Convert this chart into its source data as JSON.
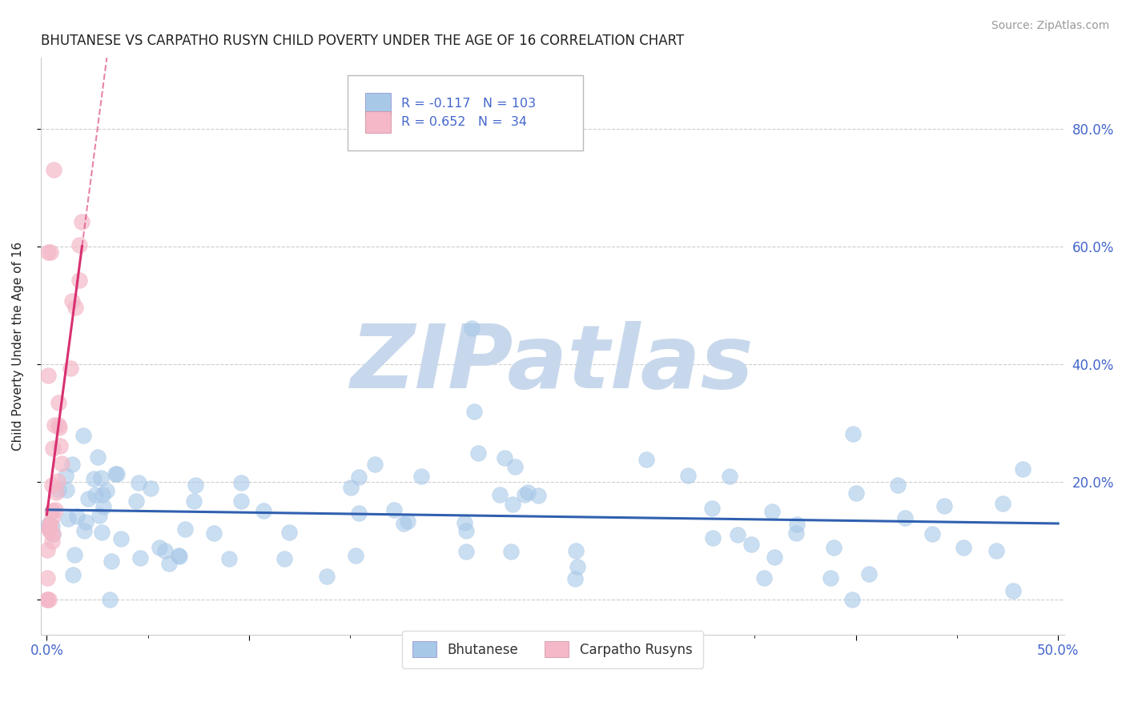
{
  "title": "BHUTANESE VS CARPATHO RUSYN CHILD POVERTY UNDER THE AGE OF 16 CORRELATION CHART",
  "source": "Source: ZipAtlas.com",
  "ylabel": "Child Poverty Under the Age of 16",
  "xlim": [
    -0.003,
    0.503
  ],
  "ylim": [
    -0.06,
    0.92
  ],
  "xtick_vals": [
    0.0,
    0.1,
    0.2,
    0.3,
    0.4,
    0.5
  ],
  "xticklabels": [
    "0.0%",
    "",
    "",
    "",
    "",
    "50.0%"
  ],
  "ytick_vals": [
    0.0,
    0.2,
    0.4,
    0.6,
    0.8
  ],
  "yticklabels_right": [
    "",
    "20.0%",
    "40.0%",
    "60.0%",
    "80.0%"
  ],
  "legend_r1": "R = -0.117",
  "legend_n1": "N = 103",
  "legend_r2": "R = 0.652",
  "legend_n2": "N =  34",
  "legend_label1": "Bhutanese",
  "legend_label2": "Carpatho Rusyns",
  "blue_color": "#a8c8e8",
  "pink_color": "#f4b8c8",
  "blue_line_color": "#3060b0",
  "pink_line_color": "#d83070",
  "watermark_color": "#c8d8ec",
  "background_color": "#ffffff",
  "grid_color": "#c8c8c8",
  "title_color": "#222222",
  "axis_label_color": "#4466cc",
  "title_fontsize": 12,
  "source_color": "#999999"
}
